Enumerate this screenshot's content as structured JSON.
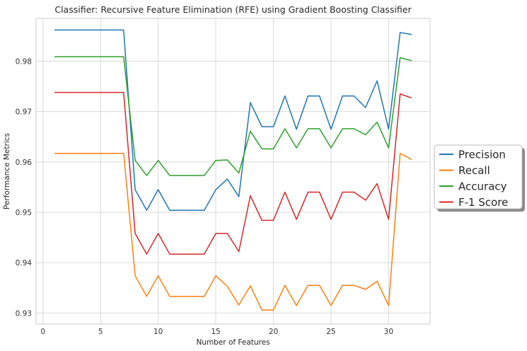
{
  "chart_data": {
    "type": "line",
    "title": "Classifier: Recursive Feature Elimination (RFE) using Gradient Boosting Classifier",
    "xlabel": "Number of Features",
    "ylabel": "Performance Metrics",
    "xlim": [
      -0.6,
      33.6
    ],
    "ylim": [
      0.9278,
      0.9885
    ],
    "xticks": [
      0,
      5,
      10,
      15,
      20,
      25,
      30
    ],
    "yticks": [
      0.93,
      0.94,
      0.95,
      0.96,
      0.97,
      0.98
    ],
    "ytick_labels": [
      "0.93",
      "0.94",
      "0.95",
      "0.96",
      "0.97",
      "0.98"
    ],
    "grid": true,
    "legend_position": "right",
    "x": [
      1,
      2,
      3,
      4,
      5,
      6,
      7,
      8,
      9,
      10,
      11,
      12,
      13,
      14,
      15,
      16,
      17,
      18,
      19,
      20,
      21,
      22,
      23,
      24,
      25,
      26,
      27,
      28,
      29,
      30,
      31,
      32
    ],
    "series": [
      {
        "name": "Precision",
        "color": "#1f77b4",
        "values": [
          0.9862,
          0.9862,
          0.9862,
          0.9862,
          0.9862,
          0.9862,
          0.9862,
          0.9545,
          0.9504,
          0.9545,
          0.9504,
          0.9504,
          0.9504,
          0.9504,
          0.9545,
          0.9566,
          0.9531,
          0.9718,
          0.967,
          0.967,
          0.9731,
          0.9665,
          0.9731,
          0.9731,
          0.9665,
          0.9731,
          0.9731,
          0.9708,
          0.9761,
          0.9665,
          0.9857,
          0.9853
        ]
      },
      {
        "name": "Recall",
        "color": "#ff7f0e",
        "values": [
          0.9617,
          0.9617,
          0.9617,
          0.9617,
          0.9617,
          0.9617,
          0.9617,
          0.9374,
          0.9333,
          0.9374,
          0.9333,
          0.9333,
          0.9333,
          0.9333,
          0.9374,
          0.9353,
          0.9316,
          0.9354,
          0.9306,
          0.9306,
          0.9355,
          0.9315,
          0.9355,
          0.9355,
          0.9315,
          0.9355,
          0.9355,
          0.9347,
          0.9363,
          0.9315,
          0.9617,
          0.9605
        ]
      },
      {
        "name": "Accuracy",
        "color": "#2ca02c",
        "values": [
          0.9809,
          0.9809,
          0.9809,
          0.9809,
          0.9809,
          0.9809,
          0.9809,
          0.9603,
          0.9573,
          0.9603,
          0.9573,
          0.9573,
          0.9573,
          0.9573,
          0.9603,
          0.9604,
          0.9578,
          0.9661,
          0.9626,
          0.9626,
          0.9666,
          0.9628,
          0.9666,
          0.9666,
          0.9628,
          0.9666,
          0.9666,
          0.9654,
          0.9679,
          0.9628,
          0.9807,
          0.9801
        ]
      },
      {
        "name": "F-1 Score",
        "color": "#d62728",
        "values": [
          0.9738,
          0.9738,
          0.9738,
          0.9738,
          0.9738,
          0.9738,
          0.9738,
          0.9458,
          0.9417,
          0.9458,
          0.9417,
          0.9417,
          0.9417,
          0.9417,
          0.9458,
          0.9458,
          0.9422,
          0.9533,
          0.9484,
          0.9484,
          0.954,
          0.9486,
          0.954,
          0.954,
          0.9486,
          0.954,
          0.954,
          0.9524,
          0.9557,
          0.9486,
          0.9735,
          0.9727
        ]
      }
    ]
  }
}
